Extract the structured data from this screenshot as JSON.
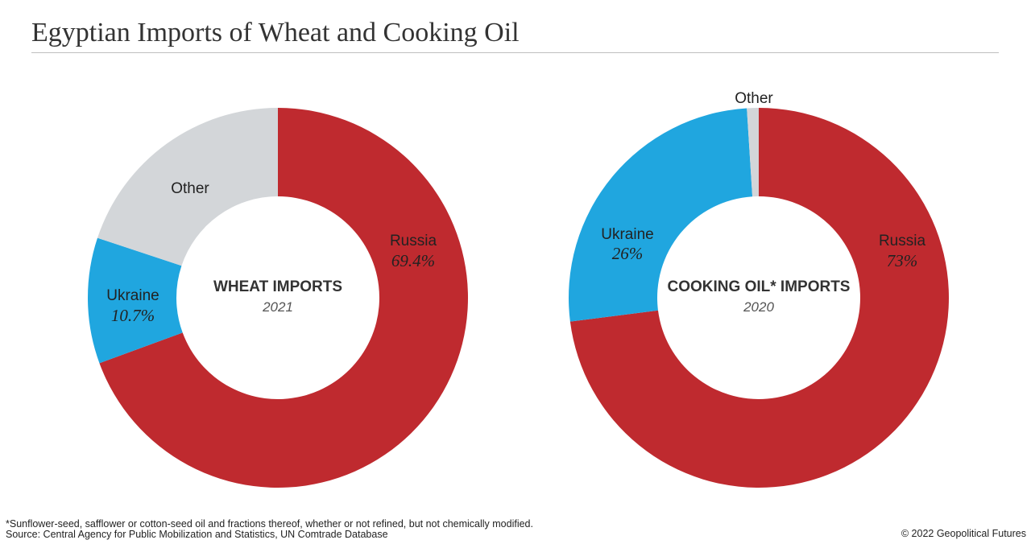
{
  "title": "Egyptian Imports of Wheat and Cooking Oil",
  "footnote": "*Sunflower-seed, safflower or cotton-seed oil and fractions thereof, whether or not refined, but not chemically modified.",
  "source": "Source: Central Agency for Public Mobilization and Statistics, UN Comtrade Database",
  "copyright": "© 2022 Geopolitical Futures",
  "chart_data": [
    {
      "type": "pie",
      "title": "WHEAT IMPORTS",
      "subtitle": "2021",
      "slices": [
        {
          "label": "Russia",
          "value": 69.4,
          "value_label": "69.4%",
          "color": "#bf2a2f"
        },
        {
          "label": "Ukraine",
          "value": 10.7,
          "value_label": "10.7%",
          "color": "#20a6df"
        },
        {
          "label": "Other",
          "value": 19.9,
          "value_label": "",
          "color": "#d3d6d9"
        }
      ]
    },
    {
      "type": "pie",
      "title": "COOKING OIL* IMPORTS",
      "subtitle": "2020",
      "slices": [
        {
          "label": "Russia",
          "value": 73,
          "value_label": "73%",
          "color": "#bf2a2f"
        },
        {
          "label": "Ukraine",
          "value": 26,
          "value_label": "26%",
          "color": "#20a6df"
        },
        {
          "label": "Other",
          "value": 1,
          "value_label": "",
          "color": "#d3d6d9"
        }
      ]
    }
  ]
}
